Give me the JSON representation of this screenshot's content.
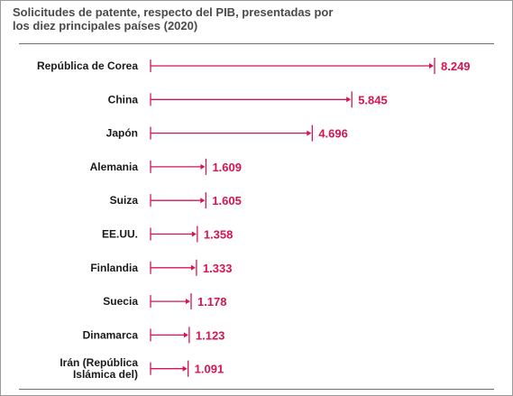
{
  "title_lines": [
    "Solicitudes de patente, respecto del PIB, presentadas por",
    "los diez principales países (2020)"
  ],
  "colors": {
    "accent": "#d6154f",
    "text": "#1a1a1a",
    "title": "#4a4a4a"
  },
  "chart_data": {
    "type": "bar",
    "orientation": "horizontal",
    "title": "Solicitudes de patente, respecto del PIB, presentadas por los diez principales países (2020)",
    "categories": [
      [
        "República de Corea"
      ],
      [
        "China"
      ],
      [
        "Japón"
      ],
      [
        "Alemania"
      ],
      [
        "Suiza"
      ],
      [
        "EE.UU."
      ],
      [
        "Finlandia"
      ],
      [
        "Suecia"
      ],
      [
        "Dinamarca"
      ],
      [
        "Irán (República",
        "Islámica del)"
      ]
    ],
    "values": [
      8.249,
      5.845,
      4.696,
      1.609,
      1.605,
      1.358,
      1.333,
      1.178,
      1.123,
      1.091
    ],
    "value_labels": [
      "8.249",
      "5.845",
      "4.696",
      "1.609",
      "1.605",
      "1.358",
      "1.333",
      "1.178",
      "1.123",
      "1.091"
    ],
    "xlim": [
      0,
      8.249
    ],
    "grid": false,
    "legend": "none"
  }
}
